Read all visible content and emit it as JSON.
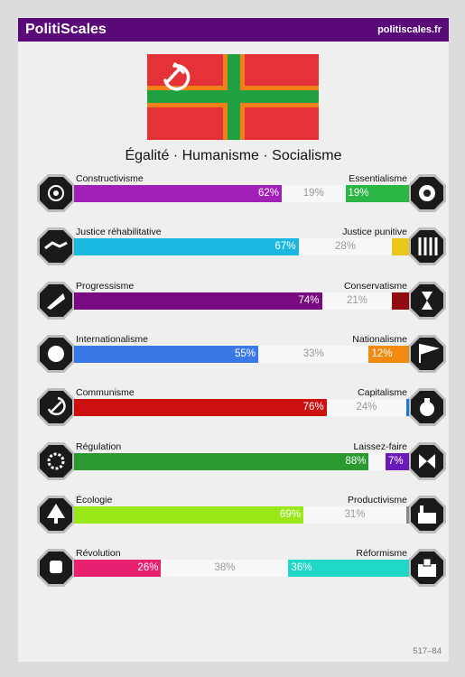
{
  "header": {
    "brand": "PolitiScales",
    "site": "politiscales.fr"
  },
  "subtitle": "Égalité · Humanisme · Socialisme",
  "footer": "517–84",
  "flag": {
    "red": "#e53238",
    "green": "#20a040",
    "orange": "#f08018"
  },
  "axes": [
    {
      "id": "constructivism",
      "left_label": "Constructivisme",
      "right_label": "Essentialisme",
      "left_pct": 62,
      "mid_pct": 19,
      "right_pct": 19,
      "left_text": "62%",
      "mid_text": "19%",
      "right_text": "19%",
      "left_color": "#a020b8",
      "right_color": "#2bb544",
      "left_icon": "eye-shield-icon",
      "right_icon": "dna-flower-icon"
    },
    {
      "id": "justice",
      "left_label": "Justice réhabilitative",
      "right_label": "Justice punitive",
      "left_pct": 67,
      "mid_pct": 28,
      "right_pct": 5,
      "left_text": "67%",
      "mid_text": "28%",
      "right_text": "",
      "left_color": "#1ab8e0",
      "right_color": "#e8c81a",
      "left_icon": "handshake-icon",
      "right_icon": "prison-bars-icon"
    },
    {
      "id": "progress",
      "left_label": "Progressisme",
      "right_label": "Conservatisme",
      "left_pct": 74,
      "mid_pct": 21,
      "right_pct": 5,
      "left_text": "74%",
      "mid_text": "21%",
      "right_text": "",
      "left_color": "#7a0a80",
      "right_color": "#900a10",
      "left_icon": "rocket-icon",
      "right_icon": "hourglass-icon"
    },
    {
      "id": "internationalism",
      "left_label": "Internationalisme",
      "right_label": "Nationalisme",
      "left_pct": 55,
      "mid_pct": 33,
      "right_pct": 12,
      "left_text": "55%",
      "mid_text": "33%",
      "right_text": "12%",
      "left_color": "#3a78e8",
      "right_color": "#f08a10",
      "left_icon": "globe-wreath-icon",
      "right_icon": "flag-icon"
    },
    {
      "id": "communism",
      "left_label": "Communisme",
      "right_label": "Capitalisme",
      "left_pct": 76,
      "mid_pct": 24,
      "right_pct": 0,
      "left_text": "76%",
      "mid_text": "24%",
      "right_text": "",
      "left_color": "#cc1010",
      "right_color": "#1a7ad0",
      "left_icon": "hammer-sickle-icon",
      "right_icon": "money-bag-icon"
    },
    {
      "id": "regulation",
      "left_label": "Régulation",
      "right_label": "Laissez-faire",
      "left_pct": 88,
      "mid_pct": 5,
      "right_pct": 7,
      "left_text": "88%",
      "mid_text": "",
      "right_text": "7%",
      "left_color": "#2a9a30",
      "right_color": "#6a1ab8",
      "left_icon": "gear-hand-icon",
      "right_icon": "butterfly-icon"
    },
    {
      "id": "ecology",
      "left_label": "Écologie",
      "right_label": "Productivisme",
      "left_pct": 69,
      "mid_pct": 31,
      "right_pct": 0,
      "left_text": "69%",
      "mid_text": "31%",
      "right_text": "",
      "left_color": "#9ae818",
      "right_color": "#888888",
      "left_icon": "tree-icon",
      "right_icon": "factory-icon"
    },
    {
      "id": "revolution",
      "left_label": "Révolution",
      "right_label": "Réformisme",
      "left_pct": 26,
      "mid_pct": 38,
      "right_pct": 36,
      "left_text": "26%",
      "mid_text": "38%",
      "right_text": "36%",
      "left_color": "#e82070",
      "right_color": "#20d8c8",
      "left_icon": "fist-icon",
      "right_icon": "ballot-box-icon"
    }
  ]
}
